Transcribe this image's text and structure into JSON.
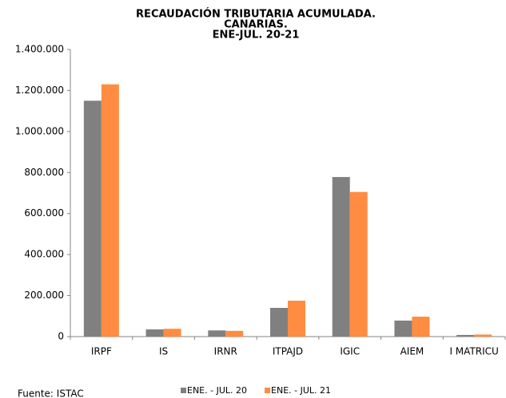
{
  "chart_data": {
    "type": "bar",
    "title": [
      "RECAUDACIÓN TRIBUTARIA ACUMULADA.",
      "CANARIAS.",
      "ENE-JUL. 20-21"
    ],
    "categories": [
      "IRPF",
      "IS",
      "IRNR",
      "ITPAJD",
      "IGIC",
      "AIEM",
      "I MATRICU"
    ],
    "series": [
      {
        "name": "ENE. - JUL. 20",
        "color": "#808080",
        "values": [
          1150000,
          35000,
          30000,
          140000,
          778000,
          78000,
          8000
        ]
      },
      {
        "name": "ENE. - JUL. 21",
        "color": "#ff8c40",
        "values": [
          1230000,
          38000,
          28000,
          175000,
          705000,
          97000,
          10000
        ]
      }
    ],
    "ylim": [
      0,
      1400000
    ],
    "yticks": [
      0,
      {
        "value": 200000,
        "label": "200.000"
      },
      {
        "value": 400000,
        "label": "400.000"
      },
      {
        "value": 600000,
        "label": "600.000"
      },
      {
        "value": 800000,
        "label": "800.000"
      },
      {
        "value": 1000000,
        "label": "1.000.000"
      },
      {
        "value": 1200000,
        "label": "1.200.000"
      },
      {
        "value": 1400000,
        "label": "1.400.000"
      }
    ],
    "grid": false,
    "legend": "bottom",
    "source": "Fuente: ISTAC"
  }
}
